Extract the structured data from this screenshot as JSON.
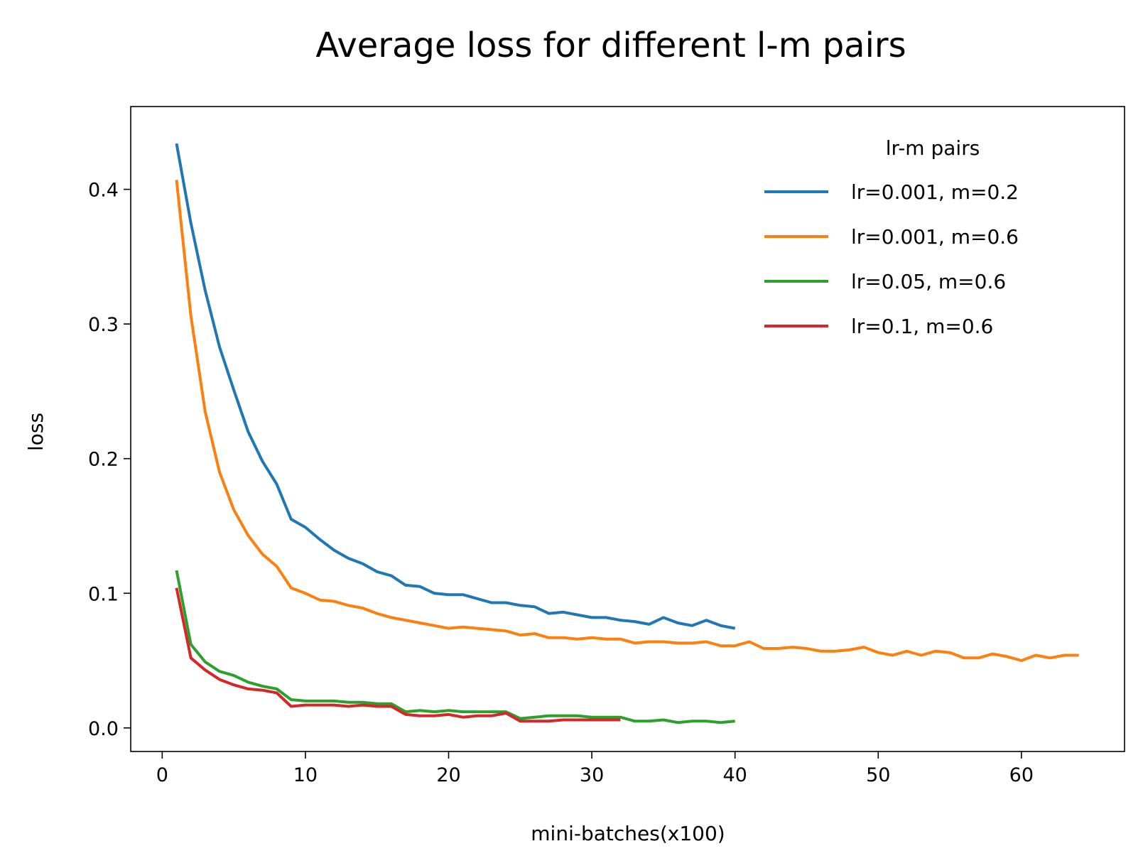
{
  "chart_data": {
    "type": "line",
    "title": "Average loss for different l-m pairs",
    "xlabel": "mini-batches(x100)",
    "ylabel": "loss",
    "xlim": [
      -2.2,
      67.2
    ],
    "ylim": [
      -0.0175,
      0.4615
    ],
    "xticks": [
      "0",
      "10",
      "20",
      "30",
      "40",
      "50",
      "60"
    ],
    "yticks": [
      "0.0",
      "0.1",
      "0.2",
      "0.3",
      "0.4"
    ],
    "grid": false,
    "legend": {
      "title": "lr-m pairs",
      "position": "top-right"
    },
    "series": [
      {
        "name": "lr=0.001, m=0.2",
        "color": "#1f77b4",
        "x": [
          1,
          2,
          3,
          4,
          5,
          6,
          7,
          8,
          9,
          10,
          11,
          12,
          13,
          14,
          15,
          16,
          17,
          18,
          19,
          20,
          21,
          22,
          23,
          24,
          25,
          26,
          27,
          28,
          29,
          30,
          31,
          32,
          33,
          34,
          35,
          36,
          37,
          38,
          39,
          40
        ],
        "y": [
          0.434,
          0.375,
          0.325,
          0.283,
          0.251,
          0.22,
          0.198,
          0.181,
          0.155,
          0.149,
          0.14,
          0.132,
          0.126,
          0.122,
          0.116,
          0.113,
          0.106,
          0.105,
          0.1,
          0.099,
          0.099,
          0.096,
          0.093,
          0.093,
          0.091,
          0.09,
          0.085,
          0.086,
          0.084,
          0.082,
          0.082,
          0.08,
          0.079,
          0.077,
          0.082,
          0.078,
          0.076,
          0.08,
          0.076,
          0.074
        ]
      },
      {
        "name": "lr=0.001, m=0.6",
        "color": "#ff7f0e",
        "x": [
          1,
          2,
          3,
          4,
          5,
          6,
          7,
          8,
          9,
          10,
          11,
          12,
          13,
          14,
          15,
          16,
          17,
          18,
          19,
          20,
          21,
          22,
          23,
          24,
          25,
          26,
          27,
          28,
          29,
          30,
          31,
          32,
          33,
          34,
          35,
          36,
          37,
          38,
          39,
          40,
          41,
          42,
          43,
          44,
          45,
          46,
          47,
          48,
          49,
          50,
          51,
          52,
          53,
          54,
          55,
          56,
          57,
          58,
          59,
          60,
          61,
          62,
          63,
          64
        ],
        "y": [
          0.407,
          0.306,
          0.235,
          0.19,
          0.162,
          0.143,
          0.129,
          0.12,
          0.104,
          0.1,
          0.095,
          0.094,
          0.091,
          0.089,
          0.085,
          0.082,
          0.08,
          0.078,
          0.076,
          0.074,
          0.075,
          0.074,
          0.073,
          0.072,
          0.069,
          0.07,
          0.067,
          0.067,
          0.066,
          0.067,
          0.066,
          0.066,
          0.063,
          0.064,
          0.064,
          0.063,
          0.063,
          0.064,
          0.061,
          0.061,
          0.064,
          0.059,
          0.059,
          0.06,
          0.059,
          0.057,
          0.057,
          0.058,
          0.06,
          0.056,
          0.054,
          0.057,
          0.054,
          0.057,
          0.056,
          0.052,
          0.052,
          0.055,
          0.053,
          0.05,
          0.054,
          0.052,
          0.054,
          0.054
        ]
      },
      {
        "name": "lr=0.05, m=0.6",
        "color": "#2ca02c",
        "x": [
          1,
          2,
          3,
          4,
          5,
          6,
          7,
          8,
          9,
          10,
          11,
          12,
          13,
          14,
          15,
          16,
          17,
          18,
          19,
          20,
          21,
          22,
          23,
          24,
          25,
          26,
          27,
          28,
          29,
          30,
          31,
          32,
          33,
          34,
          35,
          36,
          37,
          38,
          39,
          40
        ],
        "y": [
          0.117,
          0.062,
          0.049,
          0.042,
          0.039,
          0.034,
          0.031,
          0.029,
          0.021,
          0.02,
          0.02,
          0.02,
          0.019,
          0.019,
          0.018,
          0.018,
          0.012,
          0.013,
          0.012,
          0.013,
          0.012,
          0.012,
          0.012,
          0.012,
          0.007,
          0.008,
          0.009,
          0.009,
          0.009,
          0.008,
          0.008,
          0.008,
          0.005,
          0.005,
          0.006,
          0.004,
          0.005,
          0.005,
          0.004,
          0.005
        ]
      },
      {
        "name": "lr=0.1, m=0.6",
        "color": "#d62728",
        "x": [
          1,
          2,
          3,
          4,
          5,
          6,
          7,
          8,
          9,
          10,
          11,
          12,
          13,
          14,
          15,
          16,
          17,
          18,
          19,
          20,
          21,
          22,
          23,
          24,
          25,
          26,
          27,
          28,
          29,
          30,
          31,
          32
        ],
        "y": [
          0.104,
          0.052,
          0.043,
          0.036,
          0.032,
          0.029,
          0.028,
          0.026,
          0.016,
          0.017,
          0.017,
          0.017,
          0.016,
          0.017,
          0.016,
          0.016,
          0.01,
          0.009,
          0.009,
          0.01,
          0.008,
          0.009,
          0.009,
          0.011,
          0.005,
          0.005,
          0.005,
          0.006,
          0.006,
          0.006,
          0.006,
          0.006
        ]
      }
    ]
  }
}
